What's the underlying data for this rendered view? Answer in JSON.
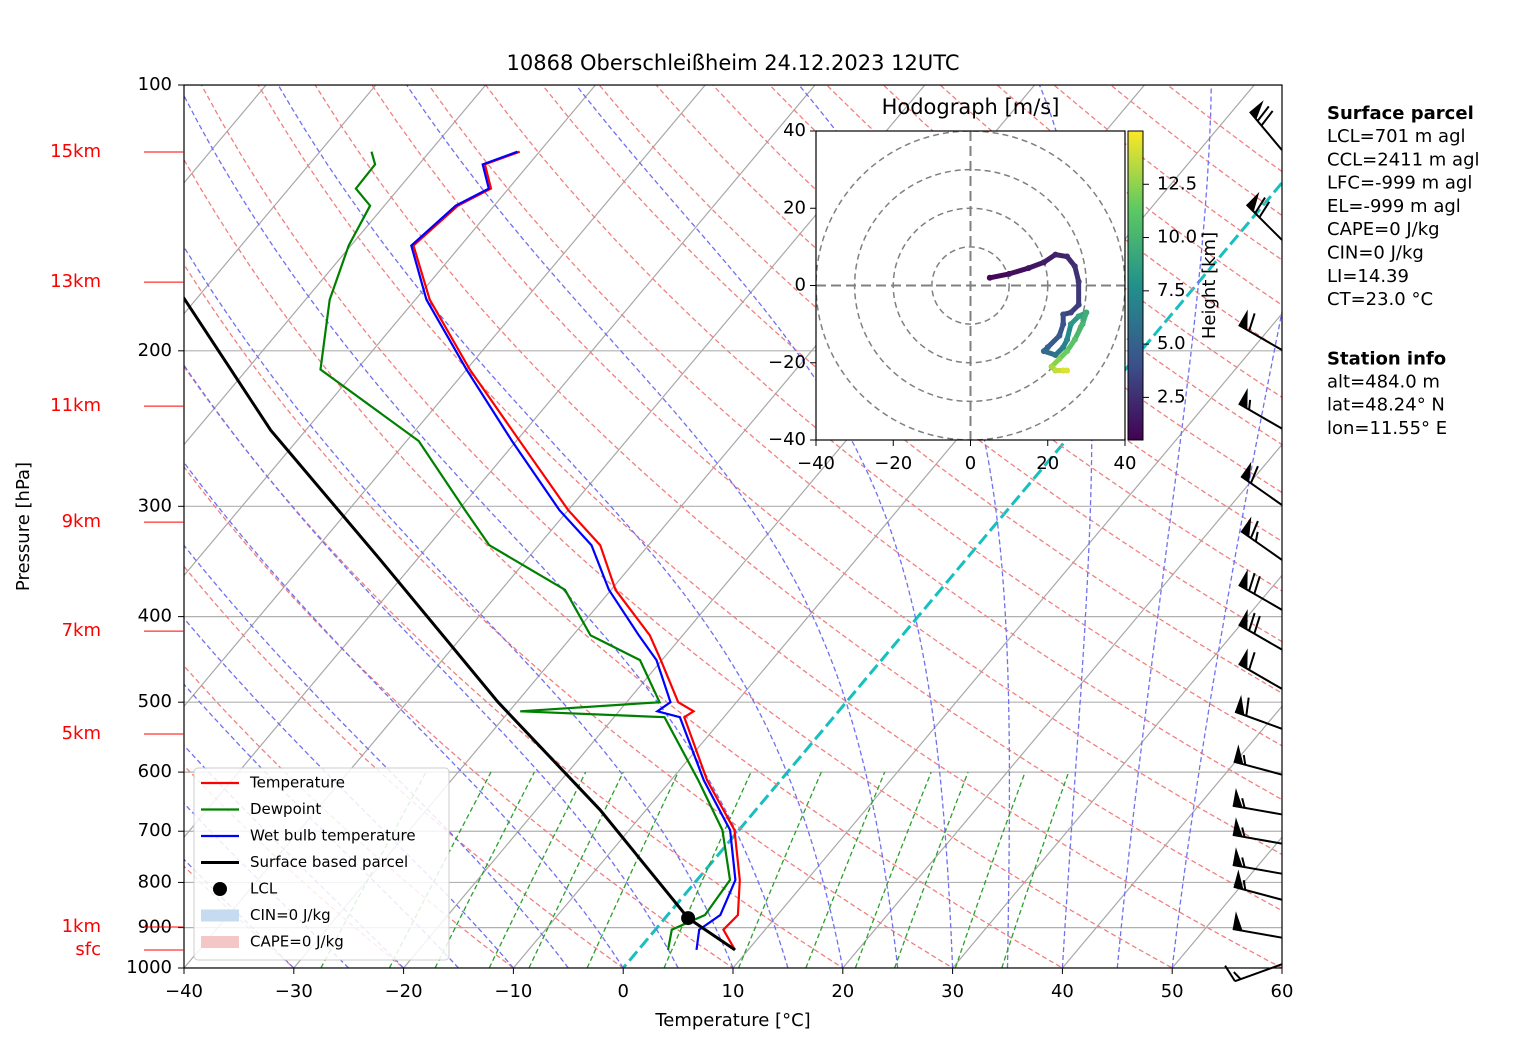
{
  "chart_data": [
    {
      "type": "skewt",
      "title": "10868 Oberschleißheim 24.12.2023 12UTC",
      "x_label": "Temperature [°C]",
      "y_label": "Pressure [hPa]",
      "xlim": [
        -40,
        60
      ],
      "ylim": [
        1000,
        100
      ],
      "log_y": true,
      "grid": true,
      "xticks": [
        {
          "value": -40,
          "label": "−40"
        },
        {
          "value": -30,
          "label": "−30"
        },
        {
          "value": -20,
          "label": "−20"
        },
        {
          "value": -10,
          "label": "−10"
        },
        0,
        10,
        20,
        30,
        40,
        50,
        60
      ],
      "yticks": [
        100,
        200,
        300,
        400,
        500,
        600,
        700,
        800,
        900,
        1000
      ],
      "height_labels": [
        {
          "value": 119.1,
          "label": "15km"
        },
        {
          "value": 167.2,
          "label": "13km"
        },
        {
          "value": 231,
          "label": "11km"
        },
        {
          "value": 312.6,
          "label": "9km"
        },
        {
          "value": 415.4,
          "label": "7km"
        },
        {
          "value": 543.3,
          "label": "5km"
        },
        {
          "value": 898.7,
          "label": "1km"
        },
        {
          "value": 954,
          "label": "sfc"
        }
      ],
      "pressure": [
        954,
        905,
        871,
        795,
        698,
        613,
        520,
        512,
        500,
        448,
        420,
        373,
        332,
        303,
        253,
        210,
        175,
        152,
        137,
        131,
        123,
        119
      ],
      "series": [
        {
          "name": "Temperature",
          "color": "#ff0000",
          "values": [
            8.8,
            6.2,
            6.4,
            3.9,
            -0.4,
            -6.7,
            -13.6,
            -13.2,
            -15.3,
            -20.1,
            -23.0,
            -29.6,
            -34.4,
            -40.0,
            -49.7,
            -59.7,
            -68.7,
            -74.3,
            -73.3,
            -71.6,
            -74.0,
            -71.8
          ]
        },
        {
          "name": "Dewpoint",
          "color": "#008000",
          "values": [
            2.7,
            1.5,
            3.4,
            3.0,
            -1.5,
            -7.5,
            -15.4,
            -29.0,
            -17.0,
            -22.0,
            -28.4,
            -34.2,
            -44.5,
            -49.4,
            -58.9,
            -73.3,
            -77.8,
            -80.2,
            -81.3,
            -83.9,
            -84.0,
            -85.3
          ]
        },
        {
          "name": "Wet bulb temperature",
          "color": "#0000ff",
          "values": [
            5.3,
            4.0,
            4.8,
            3.5,
            -0.8,
            -7.0,
            -14.0,
            -16.5,
            -16.0,
            -20.5,
            -24.0,
            -30.2,
            -35.2,
            -40.8,
            -50.4,
            -60.0,
            -69.0,
            -74.5,
            -73.5,
            -71.8,
            -74.2,
            -72.0
          ]
        },
        {
          "name": "Surface based parcel",
          "color": "#000000",
          "pressure": [
            954,
            878,
            662,
            500,
            345,
            246,
            174
          ],
          "values": [
            8.8,
            2.1,
            -14.2,
            -31.7,
            -53.3,
            -73.2,
            -91.3
          ]
        }
      ],
      "lcl": {
        "name": "LCL",
        "color": "#000000",
        "pressure": 878,
        "temperature": 2.1
      },
      "shading": [
        {
          "name": "CIN=0 J/kg",
          "color": "#c6dbef"
        },
        {
          "name": "CAPE=0 J/kg",
          "color": "#f4c6c6"
        }
      ],
      "wind": {
        "pressure": [
          118.5,
          149.8,
          199.6,
          245,
          299,
          345,
          393,
          436,
          483,
          536,
          604,
          670,
          723,
          782,
          837,
          924,
          990
        ],
        "speed": [
          70,
          70,
          60,
          55,
          60,
          65,
          70,
          70,
          60,
          60,
          55,
          55,
          55,
          55,
          55,
          50,
          15
        ],
        "direction": [
          320,
          315,
          300,
          300,
          305,
          305,
          300,
          300,
          300,
          290,
          285,
          280,
          280,
          280,
          285,
          280,
          250
        ]
      }
    },
    {
      "type": "hodograph",
      "title": "Hodograph [m/s]",
      "xlim": [
        -40,
        40
      ],
      "ylim": [
        -40,
        40
      ],
      "xticks": [
        {
          "value": -40,
          "label": "−40"
        },
        {
          "value": -20,
          "label": "−20"
        },
        0,
        20,
        40
      ],
      "yticks": [
        {
          "value": -40,
          "label": "−40"
        },
        {
          "value": -20,
          "label": "−20"
        },
        0,
        20,
        40
      ],
      "colorbar_label": "Height [km]",
      "clim": [
        0.5,
        15
      ],
      "cticks": [
        2.5,
        {
          "value": 5,
          "label": "5.0"
        },
        7.5,
        {
          "value": 10,
          "label": "10.0"
        },
        12.5
      ],
      "u": [
        5,
        10,
        15,
        19,
        22,
        25,
        27,
        28,
        28,
        26,
        24,
        24,
        23,
        20,
        19,
        22,
        24,
        25,
        26,
        28,
        30,
        29,
        27,
        25,
        23,
        21,
        22,
        24,
        25
      ],
      "values": [
        2,
        3,
        4.5,
        6,
        8,
        7.5,
        5,
        1,
        -5,
        -7,
        -7.5,
        -10,
        -13,
        -16,
        -17,
        -18,
        -16,
        -14,
        -10,
        -8,
        -7,
        -10,
        -14,
        -17,
        -19,
        -21,
        -22,
        -22,
        -22
      ],
      "height": [
        0.5,
        0.8,
        1.1,
        1.4,
        1.7,
        2.0,
        2.3,
        2.6,
        2.9,
        3.2,
        3.5,
        3.9,
        4.3,
        4.7,
        5.1,
        5.6,
        6.2,
        6.8,
        7.5,
        8.2,
        8.9,
        9.6,
        10.3,
        11.0,
        11.7,
        12.4,
        13.1,
        13.8,
        14.3
      ]
    }
  ],
  "info": {
    "surface_parcel": {
      "title": "Surface parcel",
      "lines": [
        "LCL=701 m agl",
        "CCL=2411 m agl",
        "LFC=-999 m agl",
        "EL=-999 m agl",
        "CAPE=0 J/kg",
        "CIN=0 J/kg",
        "LI=14.39",
        "CT=23.0 °C"
      ]
    },
    "station_info": {
      "title": "Station info",
      "lines": [
        "alt=484.0 m",
        "lat=48.24° N",
        "lon=11.55° E"
      ]
    }
  }
}
